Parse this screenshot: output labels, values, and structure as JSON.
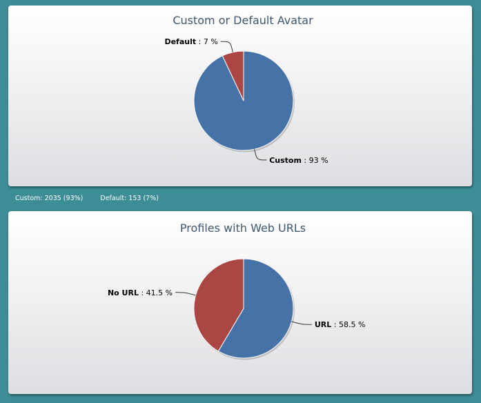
{
  "summary": {
    "custom": "Custom: 2035 (93%)",
    "default": "Default: 153 (7%)"
  },
  "chart_data": [
    {
      "type": "pie",
      "title": "Custom or Default Avatar",
      "slices": [
        {
          "name": "Custom",
          "value": 93,
          "label": "93 %",
          "color": "#4572a7"
        },
        {
          "name": "Default",
          "value": 7,
          "label": "7 %",
          "color": "#aa4643"
        }
      ]
    },
    {
      "type": "pie",
      "title": "Profiles with Web URLs",
      "slices": [
        {
          "name": "URL",
          "value": 58.5,
          "label": "58.5 %",
          "color": "#4572a7"
        },
        {
          "name": "No URL",
          "value": 41.5,
          "label": "41.5 %",
          "color": "#aa4643"
        }
      ]
    }
  ]
}
